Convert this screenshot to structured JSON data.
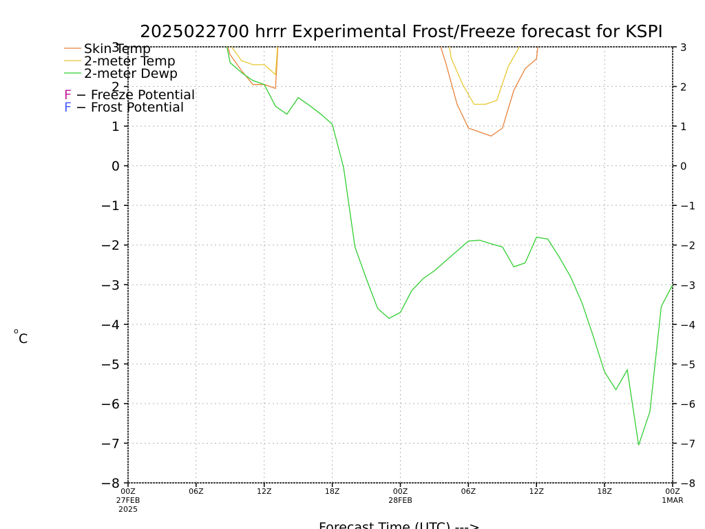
{
  "chart_data": {
    "type": "line",
    "title": "2025022700 hrrr Experimental Frost/Freeze forecast for KSPI",
    "xlabel": "Forecast Time (UTC) --->",
    "ylabel": "°C",
    "ylabel_sup": "o",
    "ylabel_main": "C",
    "ylim": [
      -8,
      3
    ],
    "xlim": [
      0,
      48
    ],
    "grid": true,
    "y_ticks": [
      3,
      2,
      1,
      0,
      -1,
      -2,
      -3,
      -4,
      -5,
      -6,
      -7,
      -8
    ],
    "y_tick_labels": [
      "3",
      "2",
      "1",
      "0",
      "−1",
      "−2",
      "−3",
      "−4",
      "−5",
      "−6",
      "−7",
      "−8"
    ],
    "x_ticks": [
      {
        "x": 0,
        "label": "00Z",
        "sub1": "27FEB",
        "sub2": "2025"
      },
      {
        "x": 6,
        "label": "06Z",
        "sub1": "",
        "sub2": ""
      },
      {
        "x": 12,
        "label": "12Z",
        "sub1": "",
        "sub2": ""
      },
      {
        "x": 18,
        "label": "18Z",
        "sub1": "",
        "sub2": ""
      },
      {
        "x": 24,
        "label": "00Z",
        "sub1": "28FEB",
        "sub2": ""
      },
      {
        "x": 30,
        "label": "06Z",
        "sub1": "",
        "sub2": ""
      },
      {
        "x": 36,
        "label": "12Z",
        "sub1": "",
        "sub2": ""
      },
      {
        "x": 42,
        "label": "18Z",
        "sub1": "",
        "sub2": ""
      },
      {
        "x": 48,
        "label": "00Z",
        "sub1": "1MAR",
        "sub2": ""
      }
    ],
    "legend": {
      "position": "top-left",
      "entries": [
        {
          "label": "Skin Temp",
          "color": "#e8823a"
        },
        {
          "label": "2-meter Temp",
          "color": "#e8c832"
        },
        {
          "label": "2-meter Dewp",
          "color": "#32cd32"
        }
      ],
      "markers": [
        {
          "letter": "F",
          "text": " − Freeze Potential",
          "color": "#c0209a"
        },
        {
          "letter": "F",
          "text": " − Frost Potential",
          "color": "#4a5cff"
        }
      ]
    },
    "series": [
      {
        "name": "Skin Temp",
        "color": "#e8823a",
        "points": [
          [
            8.5,
            3.3
          ],
          [
            9,
            2.8
          ],
          [
            10,
            2.4
          ],
          [
            11,
            2.05
          ],
          [
            12,
            2.05
          ],
          [
            13,
            1.95
          ],
          [
            13.3,
            3.5
          ],
          [
            27,
            3.5
          ],
          [
            28,
            2.6
          ],
          [
            29,
            1.55
          ],
          [
            30,
            0.95
          ],
          [
            31,
            0.85
          ],
          [
            32,
            0.75
          ],
          [
            33,
            0.95
          ],
          [
            34,
            1.9
          ],
          [
            35,
            2.45
          ],
          [
            36,
            2.7
          ],
          [
            36.3,
            3.5
          ]
        ]
      },
      {
        "name": "2-meter Temp",
        "color": "#e8c832",
        "points": [
          [
            8.5,
            3.2
          ],
          [
            9,
            3.05
          ],
          [
            10,
            2.65
          ],
          [
            11,
            2.55
          ],
          [
            12,
            2.55
          ],
          [
            13,
            2.3
          ],
          [
            13.3,
            3.5
          ],
          [
            28,
            3.5
          ],
          [
            28.5,
            2.7
          ],
          [
            29.5,
            2.05
          ],
          [
            30.5,
            1.55
          ],
          [
            31.5,
            1.55
          ],
          [
            32.5,
            1.65
          ],
          [
            33.5,
            2.5
          ],
          [
            34.5,
            3.0
          ],
          [
            35,
            3.3
          ]
        ]
      },
      {
        "name": "2-meter Dewp",
        "color": "#32cd32",
        "points": [
          [
            8.5,
            3.3
          ],
          [
            9,
            2.6
          ],
          [
            10,
            2.35
          ],
          [
            11,
            2.15
          ],
          [
            12,
            2.05
          ],
          [
            13,
            1.5
          ],
          [
            14,
            1.3
          ],
          [
            15,
            1.72
          ],
          [
            16,
            1.52
          ],
          [
            17,
            1.3
          ],
          [
            18,
            1.05
          ],
          [
            19,
            -0.05
          ],
          [
            20,
            -2.05
          ],
          [
            21,
            -2.85
          ],
          [
            22,
            -3.6
          ],
          [
            23,
            -3.85
          ],
          [
            24,
            -3.7
          ],
          [
            25,
            -3.15
          ],
          [
            26,
            -2.85
          ],
          [
            27,
            -2.65
          ],
          [
            28,
            -2.4
          ],
          [
            29,
            -2.15
          ],
          [
            30,
            -1.9
          ],
          [
            31,
            -1.88
          ],
          [
            32,
            -1.97
          ],
          [
            33,
            -2.05
          ],
          [
            34,
            -2.55
          ],
          [
            35,
            -2.45
          ],
          [
            36,
            -1.8
          ],
          [
            37,
            -1.85
          ],
          [
            38,
            -2.3
          ],
          [
            39,
            -2.8
          ],
          [
            40,
            -3.45
          ],
          [
            41,
            -4.3
          ],
          [
            42,
            -5.2
          ],
          [
            43,
            -5.65
          ],
          [
            44,
            -5.15
          ],
          [
            45,
            -7.05
          ],
          [
            46,
            -6.2
          ],
          [
            47,
            -3.55
          ],
          [
            48,
            -3.0
          ]
        ]
      }
    ]
  }
}
